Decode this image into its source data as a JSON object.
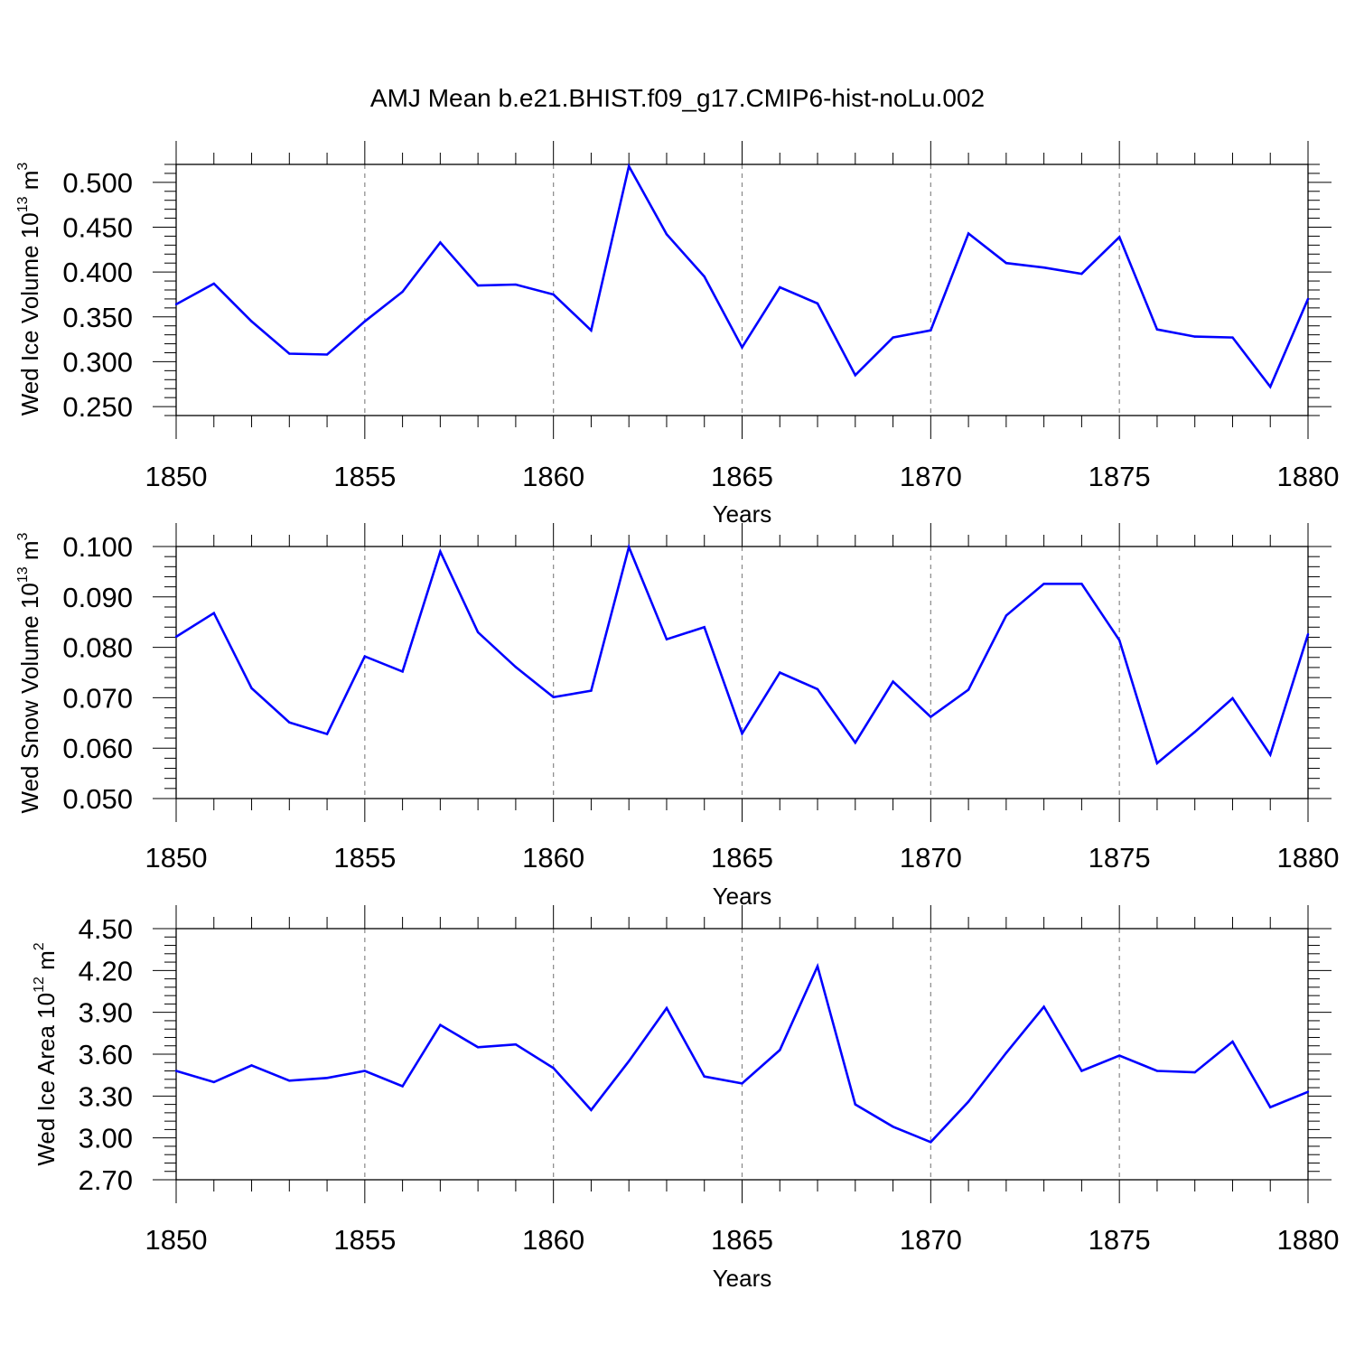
{
  "title": "AMJ Mean b.e21.BHIST.f09_g17.CMIP6-hist-noLu.002",
  "colors": {
    "line": "#0000ff",
    "axis": "#000000",
    "grid": "#888888",
    "background": "#ffffff"
  },
  "chart_data": [
    {
      "type": "line",
      "ylabel": {
        "text": "Wed Ice Volume 10",
        "exp": "13",
        "unit": " m",
        "unit_exp": "3"
      },
      "xlabel": "Years",
      "xlim": [
        1850,
        1880
      ],
      "ylim": [
        0.24,
        0.52
      ],
      "yticks": [
        0.25,
        0.3,
        0.35,
        0.4,
        0.45,
        0.5
      ],
      "ytick_labels": [
        "0.250",
        "0.300",
        "0.350",
        "0.400",
        "0.450",
        "0.500"
      ],
      "xticks": [
        1850,
        1855,
        1860,
        1865,
        1870,
        1875,
        1880
      ],
      "xtick_labels": [
        "1850",
        "1855",
        "1860",
        "1865",
        "1870",
        "1875",
        "1880"
      ],
      "grid": "vertical dashed at major x ticks",
      "series": [
        {
          "name": "Wed Ice Volume",
          "x": [
            1850,
            1851,
            1852,
            1853,
            1854,
            1855,
            1856,
            1857,
            1858,
            1859,
            1860,
            1861,
            1862,
            1863,
            1864,
            1865,
            1866,
            1867,
            1868,
            1869,
            1870,
            1871,
            1872,
            1873,
            1874,
            1875,
            1876,
            1877,
            1878,
            1879,
            1880
          ],
          "values": [
            0.364,
            0.387,
            0.345,
            0.309,
            0.308,
            0.345,
            0.378,
            0.433,
            0.385,
            0.386,
            0.375,
            0.335,
            0.518,
            0.442,
            0.395,
            0.316,
            0.383,
            0.365,
            0.285,
            0.327,
            0.335,
            0.443,
            0.41,
            0.405,
            0.398,
            0.439,
            0.336,
            0.328,
            0.327,
            0.272,
            0.37
          ]
        }
      ]
    },
    {
      "type": "line",
      "ylabel": {
        "text": "Wed Snow Volume 10",
        "exp": "13",
        "unit": " m",
        "unit_exp": "3"
      },
      "xlabel": "Years",
      "xlim": [
        1850,
        1880
      ],
      "ylim": [
        0.05,
        0.1
      ],
      "yticks": [
        0.05,
        0.06,
        0.07,
        0.08,
        0.09,
        0.1
      ],
      "ytick_labels": [
        "0.050",
        "0.060",
        "0.070",
        "0.080",
        "0.090",
        "0.100"
      ],
      "xticks": [
        1850,
        1855,
        1860,
        1865,
        1870,
        1875,
        1880
      ],
      "xtick_labels": [
        "1850",
        "1855",
        "1860",
        "1865",
        "1870",
        "1875",
        "1880"
      ],
      "grid": "vertical dashed at major x ticks",
      "series": [
        {
          "name": "Wed Snow Volume",
          "x": [
            1850,
            1851,
            1852,
            1853,
            1854,
            1855,
            1856,
            1857,
            1858,
            1859,
            1860,
            1861,
            1862,
            1863,
            1864,
            1865,
            1866,
            1867,
            1868,
            1869,
            1870,
            1871,
            1872,
            1873,
            1874,
            1875,
            1876,
            1877,
            1878,
            1879,
            1880
          ],
          "values": [
            0.0821,
            0.0868,
            0.0719,
            0.0651,
            0.0628,
            0.0782,
            0.0752,
            0.099,
            0.083,
            0.0761,
            0.0701,
            0.0714,
            0.0999,
            0.0816,
            0.084,
            0.0629,
            0.075,
            0.0717,
            0.0611,
            0.0732,
            0.0662,
            0.0716,
            0.0863,
            0.0926,
            0.0926,
            0.0814,
            0.057,
            0.0632,
            0.0699,
            0.0587,
            0.0826
          ]
        }
      ]
    },
    {
      "type": "line",
      "ylabel": {
        "text": "Wed Ice Area 10",
        "exp": "12",
        "unit": " m",
        "unit_exp": "2"
      },
      "xlabel": "Years",
      "xlim": [
        1850,
        1880
      ],
      "ylim": [
        2.7,
        4.5
      ],
      "yticks": [
        2.7,
        3.0,
        3.3,
        3.6,
        3.9,
        4.2,
        4.5
      ],
      "ytick_labels": [
        "2.70",
        "3.00",
        "3.30",
        "3.60",
        "3.90",
        "4.20",
        "4.50"
      ],
      "xticks": [
        1850,
        1855,
        1860,
        1865,
        1870,
        1875,
        1880
      ],
      "xtick_labels": [
        "1850",
        "1855",
        "1860",
        "1865",
        "1870",
        "1875",
        "1880"
      ],
      "grid": "vertical dashed at major x ticks",
      "series": [
        {
          "name": "Wed Ice Area",
          "x": [
            1850,
            1851,
            1852,
            1853,
            1854,
            1855,
            1856,
            1857,
            1858,
            1859,
            1860,
            1861,
            1862,
            1863,
            1864,
            1865,
            1866,
            1867,
            1868,
            1869,
            1870,
            1871,
            1872,
            1873,
            1874,
            1875,
            1876,
            1877,
            1878,
            1879,
            1880
          ],
          "values": [
            3.48,
            3.4,
            3.52,
            3.41,
            3.43,
            3.48,
            3.37,
            3.81,
            3.65,
            3.67,
            3.5,
            3.2,
            3.55,
            3.93,
            3.44,
            3.39,
            3.63,
            4.23,
            3.24,
            3.08,
            2.97,
            3.26,
            3.61,
            3.94,
            3.48,
            3.59,
            3.48,
            3.47,
            3.69,
            3.22,
            3.33
          ]
        }
      ]
    }
  ]
}
